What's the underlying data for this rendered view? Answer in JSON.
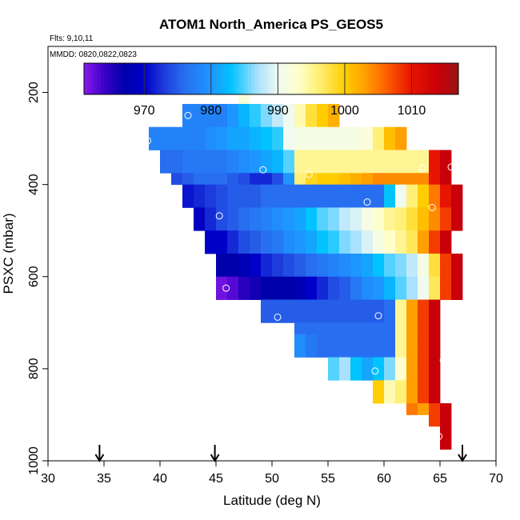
{
  "chart_data": {
    "type": "heatmap",
    "title": "ATOM1 North_America PS_GEOS5",
    "flights_note": "Flts: 9,10,11",
    "dates_note": "MMDD: 0820,0822,0823",
    "xlabel": "Latitude (deg N)",
    "ylabel": "PSXC (mbar)",
    "xlim": [
      30,
      70
    ],
    "ylim": [
      1000,
      100
    ],
    "x_ticks": [
      30,
      35,
      40,
      45,
      50,
      55,
      60,
      65,
      70
    ],
    "y_ticks": [
      200,
      400,
      600,
      800,
      1000
    ],
    "colorbar": {
      "vmin": 961,
      "vmax": 1017,
      "ticks": [
        970,
        980,
        990,
        1000,
        1010
      ]
    },
    "bin_size": {
      "lat": 1,
      "pressure": 25
    },
    "rows": [
      {
        "p": 187.5,
        "lat0": 47,
        "values": [
          992
        ]
      },
      {
        "p": 212.5,
        "lat0": 47,
        "values": [
          992
        ]
      },
      {
        "p": 237.5,
        "lat0": 42,
        "values": [
          978,
          978,
          978,
          978,
          980,
          982,
          984,
          986,
          988,
          990,
          994,
          998,
          1000,
          1002
        ]
      },
      {
        "p": 262.5,
        "lat0": 42,
        "values": [
          978,
          978,
          978,
          978,
          980,
          982,
          984,
          986,
          988,
          990,
          994,
          998,
          1000,
          1002
        ]
      },
      {
        "p": 287.5,
        "lat0": 39,
        "values": [
          978,
          978,
          978,
          978,
          978,
          979,
          980,
          981,
          981,
          982,
          983,
          984,
          990,
          991,
          991,
          991,
          991,
          991,
          991,
          992,
          996,
          1001,
          1003
        ]
      },
      {
        "p": 312.5,
        "lat0": 39,
        "values": [
          978,
          978,
          978,
          978,
          978,
          979,
          980,
          981,
          981,
          982,
          983,
          984,
          990,
          991,
          991,
          991,
          991,
          991,
          991,
          992,
          996,
          1001,
          1003
        ]
      },
      {
        "p": 337.5,
        "lat0": 40,
        "values": [
          976,
          976,
          977,
          977,
          977,
          977,
          978,
          979,
          980,
          981,
          982,
          985,
          995,
          995,
          995,
          995,
          995,
          995,
          995,
          995,
          995,
          995,
          995,
          995,
          1010,
          1014
        ]
      },
      {
        "p": 362.5,
        "lat0": 40,
        "values": [
          976,
          976,
          977,
          977,
          977,
          977,
          978,
          979,
          980,
          981,
          982,
          985,
          995,
          995,
          995,
          995,
          995,
          995,
          995,
          995,
          995,
          995,
          995,
          995,
          1010,
          1014
        ]
      },
      {
        "p": 387.5,
        "lat0": 41,
        "values": [
          974,
          975,
          976,
          976,
          976,
          975,
          974,
          972,
          972,
          974,
          980,
          996,
          999,
          1000,
          1000,
          1001,
          1002,
          1003,
          1004,
          1004,
          1004,
          1004,
          1004,
          1010,
          1014
        ]
      },
      {
        "p": 412.5,
        "lat0": 42,
        "values": [
          971,
          972,
          973,
          974,
          975,
          975,
          975,
          976,
          976,
          976,
          976,
          976,
          976,
          976,
          976,
          976,
          976,
          976,
          983,
          990,
          996,
          1000,
          1005,
          1010,
          1014
        ]
      },
      {
        "p": 437.5,
        "lat0": 42,
        "values": [
          971,
          972,
          973,
          974,
          975,
          975,
          975,
          976,
          976,
          976,
          976,
          976,
          976,
          976,
          976,
          976,
          976,
          976,
          983,
          990,
          996,
          1000,
          1005,
          1010,
          1014
        ]
      },
      {
        "p": 462.5,
        "lat0": 43,
        "values": [
          969,
          972,
          974,
          975,
          976,
          977,
          978,
          979,
          980,
          981,
          983,
          985,
          986,
          988,
          989,
          991,
          993,
          995,
          996,
          998,
          1001,
          1004,
          1008,
          1014
        ]
      },
      {
        "p": 487.5,
        "lat0": 43,
        "values": [
          969,
          972,
          974,
          975,
          976,
          977,
          978,
          979,
          980,
          981,
          983,
          985,
          986,
          988,
          989,
          991,
          993,
          995,
          996,
          998,
          1001,
          1004,
          1008,
          1014
        ]
      },
      {
        "p": 512.5,
        "lat0": 44,
        "values": [
          970,
          970,
          972,
          974,
          975,
          976,
          977,
          979,
          980,
          981,
          983,
          984,
          986,
          987,
          989,
          991,
          993,
          995,
          997,
          1003,
          1008,
          1014
        ]
      },
      {
        "p": 537.5,
        "lat0": 44,
        "values": [
          970,
          970,
          972,
          974,
          975,
          976,
          977,
          979,
          980,
          981,
          983,
          984,
          986,
          987,
          989,
          991,
          993,
          995,
          997,
          1003,
          1008,
          1014
        ]
      },
      {
        "p": 562.5,
        "lat0": 45,
        "values": [
          967,
          967,
          968,
          970,
          972,
          973,
          974,
          975,
          976,
          977,
          978,
          979,
          980,
          981,
          983,
          985,
          986,
          988,
          991,
          998,
          1008,
          1014
        ]
      },
      {
        "p": 587.5,
        "lat0": 45,
        "values": [
          967,
          967,
          968,
          970,
          972,
          973,
          974,
          975,
          976,
          977,
          978,
          979,
          980,
          981,
          983,
          985,
          986,
          988,
          991,
          998,
          1008,
          1014
        ]
      },
      {
        "p": 612.5,
        "lat0": 45,
        "values": [
          962,
          963,
          965,
          966,
          967,
          967,
          967,
          968,
          970,
          972,
          974,
          975,
          977,
          979,
          980,
          982,
          985,
          987,
          990,
          997,
          1008,
          1014
        ]
      },
      {
        "p": 637.5,
        "lat0": 45,
        "values": [
          962,
          963,
          965,
          966,
          967,
          967,
          967,
          968,
          970,
          972,
          974,
          975,
          977,
          979,
          980,
          982,
          985,
          987,
          990,
          997,
          1008,
          1014
        ]
      },
      {
        "p": 662.5,
        "lat0": 49,
        "values": [
          975,
          975,
          975,
          975,
          975,
          975,
          975,
          975,
          975,
          975,
          975,
          976,
          995,
          1003,
          1008,
          1014
        ]
      },
      {
        "p": 687.5,
        "lat0": 49,
        "values": [
          975,
          975,
          975,
          975,
          975,
          975,
          975,
          975,
          975,
          975,
          975,
          976,
          995,
          1003,
          1008,
          1014
        ]
      },
      {
        "p": 712.5,
        "lat0": 52,
        "values": [
          976,
          976,
          976,
          976,
          976,
          976,
          976,
          976,
          976,
          995,
          1003,
          1008,
          1014
        ]
      },
      {
        "p": 737.5,
        "lat0": 52,
        "values": [
          979,
          977,
          976,
          976,
          976,
          976,
          976,
          976,
          976,
          995,
          1003,
          1008,
          1014
        ]
      },
      {
        "p": 762.5,
        "lat0": 52,
        "values": [
          979,
          977,
          976,
          976,
          976,
          976,
          976,
          976,
          976,
          995,
          1003,
          1008,
          1014
        ]
      },
      {
        "p": 787.5,
        "lat0": 55,
        "values": [
          985,
          987,
          983,
          981,
          983,
          986,
          993,
          1003,
          1008,
          1014
        ]
      },
      {
        "p": 812.5,
        "lat0": 55,
        "values": [
          985,
          987,
          983,
          981,
          983,
          986,
          993,
          1003,
          1008,
          1014
        ]
      },
      {
        "p": 837.5,
        "lat0": 59,
        "values": [
          1000,
          994,
          996,
          1003,
          1008,
          1014
        ]
      },
      {
        "p": 862.5,
        "lat0": 59,
        "values": [
          1000,
          994,
          996,
          1003,
          1008,
          1014
        ]
      },
      {
        "p": 887.5,
        "lat0": 62,
        "values": [
          1005,
          1003,
          1008,
          1014
        ]
      },
      {
        "p": 912.5,
        "lat0": 64,
        "values": [
          1008,
          1014
        ]
      },
      {
        "p": 937.5,
        "lat0": 65,
        "values": [
          1014
        ]
      },
      {
        "p": 962.5,
        "lat0": 65,
        "values": [
          1014
        ]
      }
    ],
    "circles": [
      {
        "lat": 47.3,
        "p": 200
      },
      {
        "lat": 57.0,
        "p": 225
      },
      {
        "lat": 42.5,
        "p": 250
      },
      {
        "lat": 38.9,
        "p": 305
      },
      {
        "lat": 49.2,
        "p": 368
      },
      {
        "lat": 53.3,
        "p": 378
      },
      {
        "lat": 63.4,
        "p": 365
      },
      {
        "lat": 66.0,
        "p": 362
      },
      {
        "lat": 58.5,
        "p": 438
      },
      {
        "lat": 64.3,
        "p": 450
      },
      {
        "lat": 45.3,
        "p": 468
      },
      {
        "lat": 45.9,
        "p": 625
      },
      {
        "lat": 50.5,
        "p": 688
      },
      {
        "lat": 59.5,
        "p": 685
      },
      {
        "lat": 65.3,
        "p": 782
      },
      {
        "lat": 59.2,
        "p": 805
      },
      {
        "lat": 64.9,
        "p": 947
      }
    ],
    "arrows": [
      {
        "lat": 34.6
      },
      {
        "lat": 44.9
      },
      {
        "lat": 67.0
      }
    ]
  }
}
